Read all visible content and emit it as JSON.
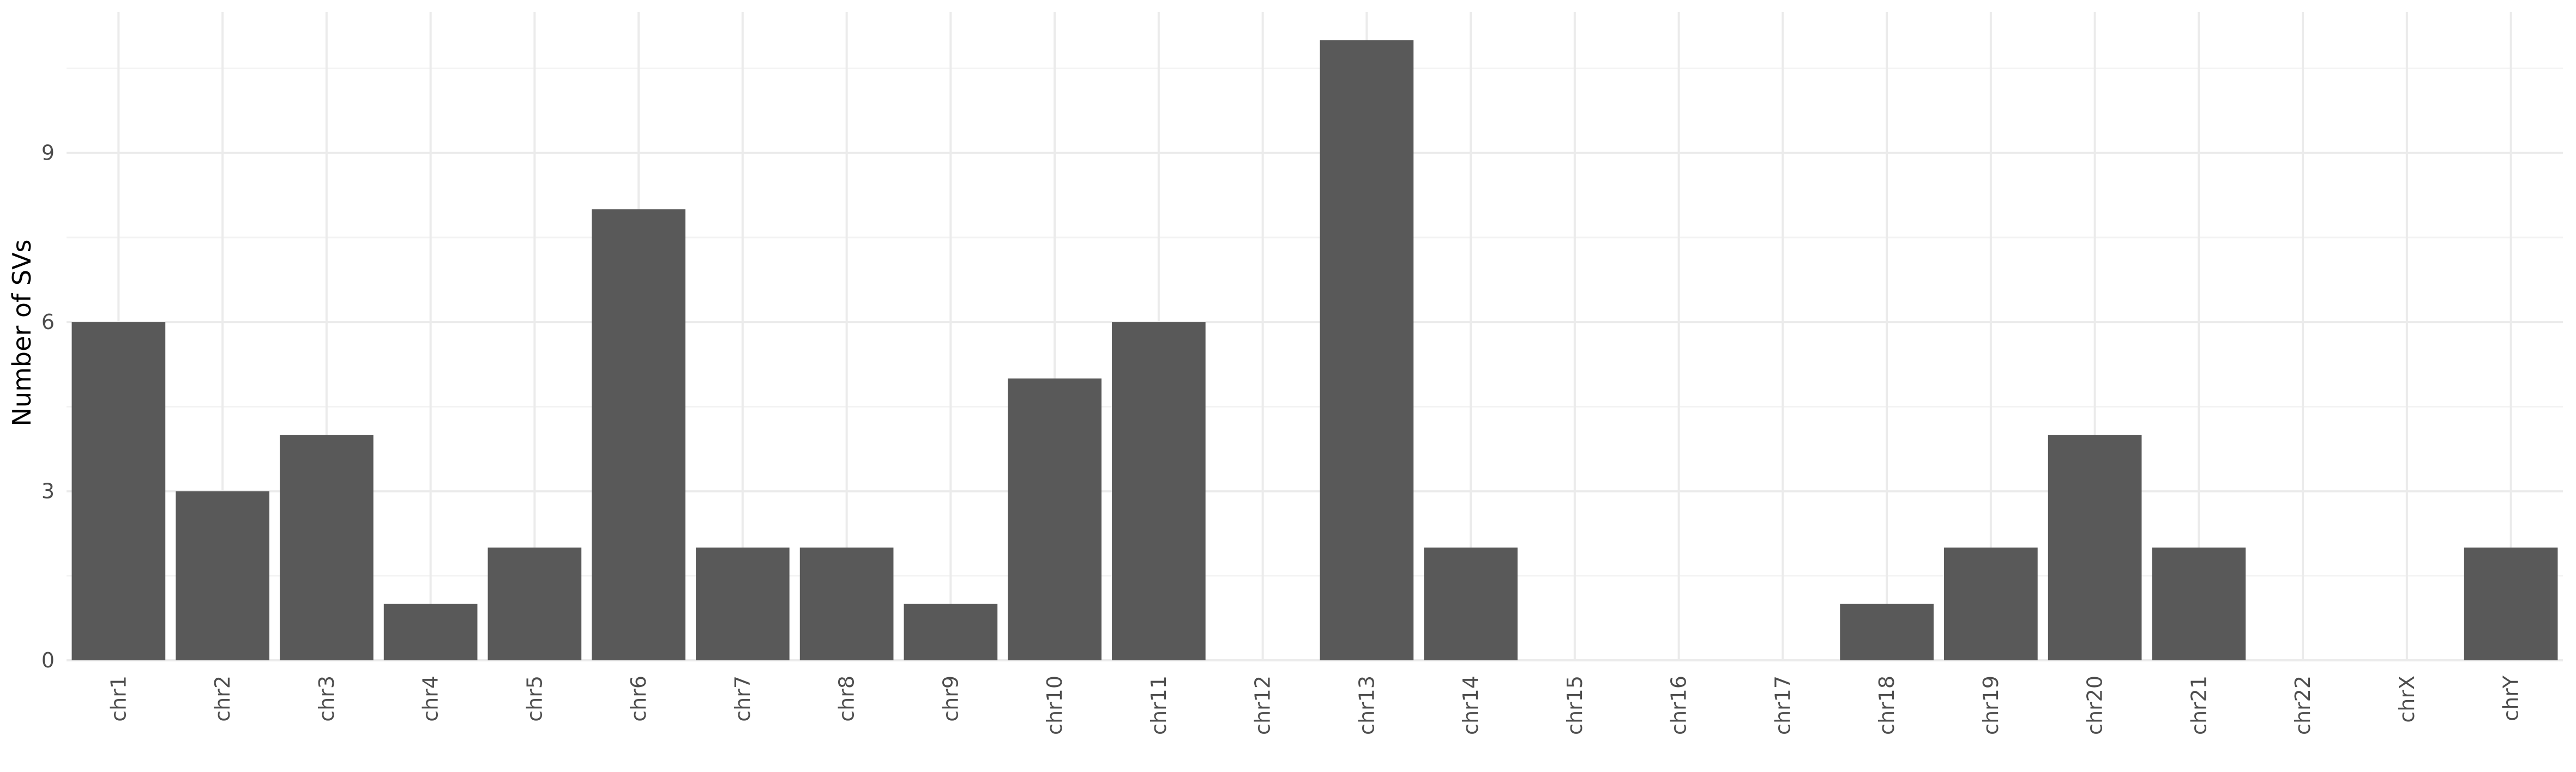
{
  "chart_data": {
    "type": "bar",
    "title": "",
    "xlabel": "",
    "ylabel": "Number of SVs",
    "categories": [
      "chr1",
      "chr2",
      "chr3",
      "chr4",
      "chr5",
      "chr6",
      "chr7",
      "chr8",
      "chr9",
      "chr10",
      "chr11",
      "chr12",
      "chr13",
      "chr14",
      "chr15",
      "chr16",
      "chr17",
      "chr18",
      "chr19",
      "chr20",
      "chr21",
      "chr22",
      "chrX",
      "chrY"
    ],
    "values": [
      6,
      3,
      4,
      1,
      2,
      8,
      2,
      2,
      1,
      5,
      6,
      0,
      11,
      2,
      0,
      0,
      0,
      1,
      2,
      4,
      2,
      0,
      0,
      2
    ],
    "ylim": [
      0,
      11.5
    ],
    "yticks": [
      0,
      3,
      6,
      9
    ],
    "grid": true,
    "legend": "none",
    "colors": {
      "bar": "#595959",
      "grid_major": "#ebebeb",
      "grid_minor": "#f3f3f3"
    }
  }
}
